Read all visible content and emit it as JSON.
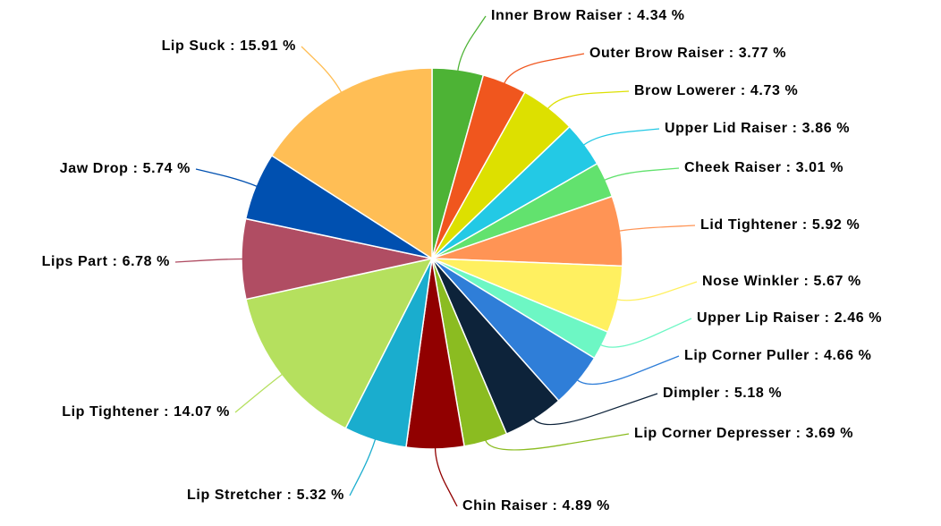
{
  "chart_data": {
    "type": "pie",
    "label_separator": " : ",
    "categories": [
      "Inner Brow Raiser",
      "Outer Brow Raiser",
      "Brow Lowerer",
      "Upper Lid Raiser",
      "Cheek Raiser",
      "Lid Tightener",
      "Nose Winkler",
      "Upper Lip Raiser",
      "Lip Corner Puller",
      "Dimpler",
      "Lip Corner Depresser",
      "Chin Raiser",
      "Lip Stretcher",
      "Lip Tightener",
      "Lips Part",
      "Jaw Drop",
      "Lip Suck"
    ],
    "values": [
      4.34,
      3.77,
      4.73,
      3.86,
      3.01,
      5.92,
      5.67,
      2.46,
      4.66,
      5.18,
      3.69,
      4.89,
      5.32,
      14.07,
      6.78,
      5.74,
      15.91
    ],
    "value_labels": [
      "4.34 %",
      "3.77 %",
      "4.73 %",
      "3.86 %",
      "3.01 %",
      "5.92 %",
      "5.67 %",
      "2.46 %",
      "4.66 %",
      "5.18 %",
      "3.69 %",
      "4.89 %",
      "5.32 %",
      "14.07 %",
      "6.78 %",
      "5.74 %",
      "15.91 %"
    ],
    "colors": [
      "#4db335",
      "#f0561e",
      "#dde000",
      "#23c9e5",
      "#62e26e",
      "#ff9455",
      "#fff060",
      "#6df7c4",
      "#2f7ed8",
      "#0d233a",
      "#8bbc21",
      "#910000",
      "#1aadce",
      "#b5e05e",
      "#b04d63",
      "#0050b0",
      "#ffbe55"
    ]
  }
}
